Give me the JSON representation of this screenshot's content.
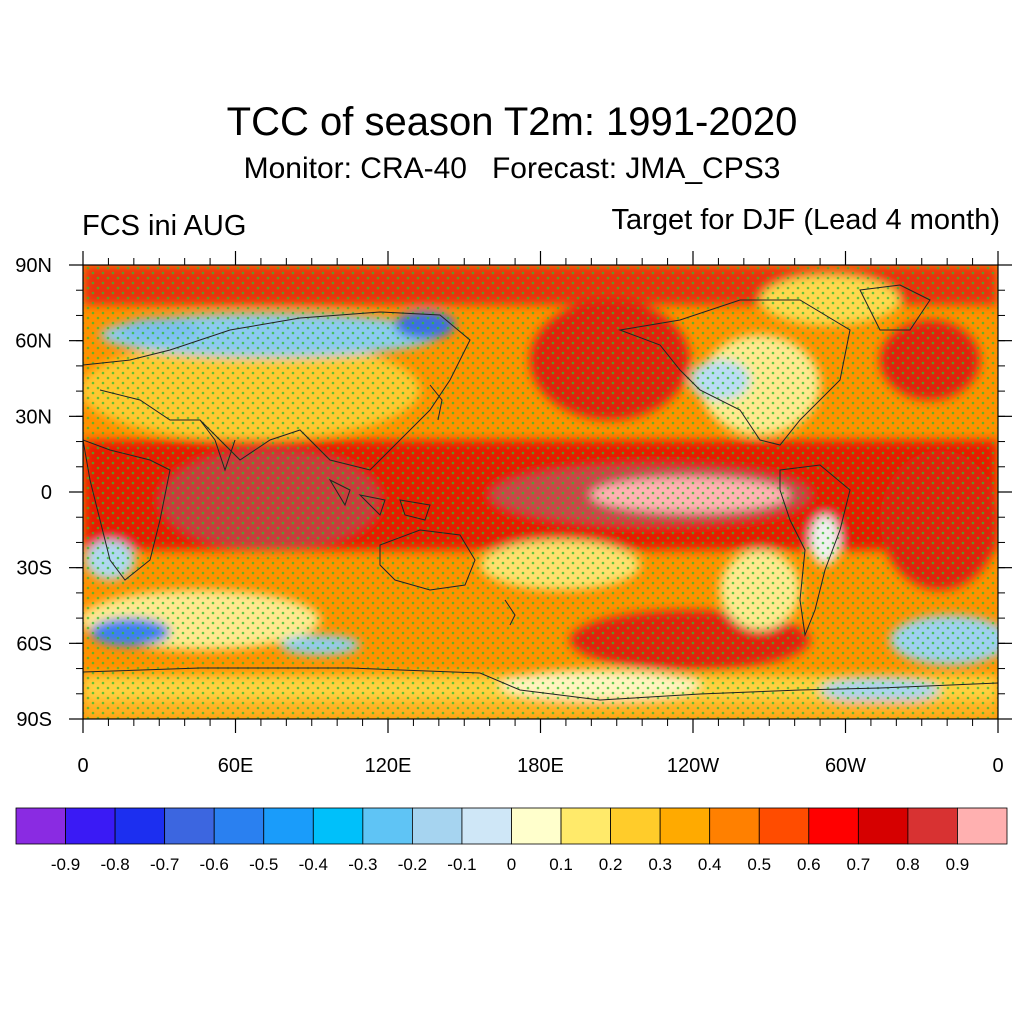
{
  "figure": {
    "title": "TCC of season T2m: 1991-2020",
    "subtitle": "Monitor: CRA-40   Forecast: JMA_CPS3",
    "left_label": "FCS ini AUG",
    "right_label": "Target for DJF (Lead 4 month)"
  },
  "map": {
    "projection": "cylindrical-equidistant",
    "lon_range": [
      0,
      360
    ],
    "lat_range": [
      -90,
      90
    ],
    "lat_ticks": [
      {
        "lat": 90,
        "label": "90N"
      },
      {
        "lat": 60,
        "label": "60N"
      },
      {
        "lat": 30,
        "label": "30N"
      },
      {
        "lat": 0,
        "label": "0"
      },
      {
        "lat": -30,
        "label": "30S"
      },
      {
        "lat": -60,
        "label": "60S"
      },
      {
        "lat": -90,
        "label": "90S"
      }
    ],
    "lon_ticks": [
      {
        "lon": 0,
        "label": "0"
      },
      {
        "lon": 60,
        "label": "60E"
      },
      {
        "lon": 120,
        "label": "120E"
      },
      {
        "lon": 180,
        "label": "180E"
      },
      {
        "lon": 240,
        "label": "120W"
      },
      {
        "lon": 300,
        "label": "60W"
      },
      {
        "lon": 360,
        "label": "0"
      }
    ],
    "stipple_color": "#2fbf2f",
    "coastline_color": "#222222"
  },
  "colorbar": {
    "colors": [
      "#8a2be2",
      "#3a1af5",
      "#1c2ff0",
      "#3c66e0",
      "#2a80f0",
      "#1a9cfa",
      "#00c0fa",
      "#5fc4f5",
      "#a6d4f0",
      "#cfe7f7",
      "#ffffcc",
      "#ffea6a",
      "#ffcc2a",
      "#ffaa00",
      "#ff8000",
      "#ff4c00",
      "#ff0000",
      "#d60000",
      "#d83232",
      "#ffb0b0"
    ],
    "labels": [
      "-0.9",
      "-0.8",
      "-0.7",
      "-0.6",
      "-0.5",
      "-0.4",
      "-0.3",
      "-0.2",
      "-0.1",
      "0",
      "0.1",
      "0.2",
      "0.3",
      "0.4",
      "0.5",
      "0.6",
      "0.7",
      "0.8",
      "0.9"
    ]
  }
}
